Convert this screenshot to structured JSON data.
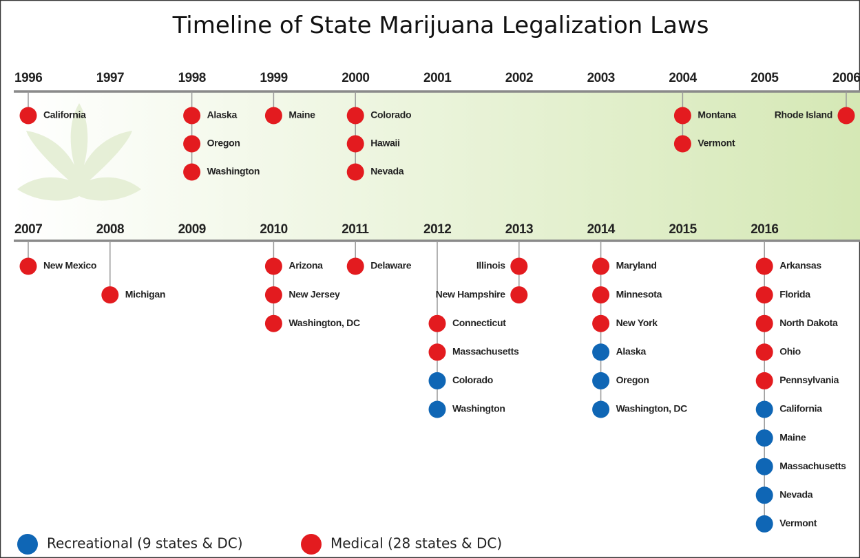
{
  "title": "Timeline of State Marijuana Legalization Laws",
  "rows": [
    {
      "years": [
        {
          "year": "1996",
          "entries": [
            {
              "state": "California",
              "color": "#e31b1f"
            }
          ]
        },
        {
          "year": "1997",
          "entries": []
        },
        {
          "year": "1998",
          "entries": [
            {
              "state": "Alaska",
              "color": "#e31b1f"
            },
            {
              "state": "Oregon",
              "color": "#e31b1f"
            },
            {
              "state": "Washington",
              "color": "#e31b1f"
            }
          ]
        },
        {
          "year": "1999",
          "entries": [
            {
              "state": "Maine",
              "color": "#e31b1f"
            }
          ]
        },
        {
          "year": "2000",
          "entries": [
            {
              "state": "Colorado",
              "color": "#e31b1f"
            },
            {
              "state": "Hawaii",
              "color": "#e31b1f"
            },
            {
              "state": "Nevada",
              "color": "#e31b1f"
            }
          ]
        },
        {
          "year": "2001",
          "entries": []
        },
        {
          "year": "2002",
          "entries": []
        },
        {
          "year": "2003",
          "entries": []
        },
        {
          "year": "2004",
          "entries": [
            {
              "state": "Montana",
              "color": "#e31b1f"
            },
            {
              "state": "Vermont",
              "color": "#e31b1f"
            }
          ]
        },
        {
          "year": "2005",
          "entries": []
        },
        {
          "year": "2006",
          "entries": [
            {
              "state": "Rhode Island",
              "color": "#e31b1f"
            }
          ]
        }
      ]
    },
    {
      "years": [
        {
          "year": "2007",
          "entries": [
            {
              "state": "New Mexico",
              "color": "#e31b1f"
            }
          ]
        },
        {
          "year": "2008",
          "entries": [
            {
              "state": "Michigan",
              "color": "#e31b1f"
            }
          ]
        },
        {
          "year": "2009",
          "entries": []
        },
        {
          "year": "2010",
          "entries": [
            {
              "state": "Arizona",
              "color": "#e31b1f"
            },
            {
              "state": "New Jersey",
              "color": "#e31b1f"
            },
            {
              "state": "Washington, DC",
              "color": "#e31b1f"
            }
          ]
        },
        {
          "year": "2011",
          "entries": [
            {
              "state": "Delaware",
              "color": "#e31b1f"
            }
          ]
        },
        {
          "year": "2012",
          "entries": [
            {
              "state": "Connecticut",
              "color": "#e31b1f"
            },
            {
              "state": "Massachusetts",
              "color": "#e31b1f"
            },
            {
              "state": "Colorado",
              "color": "#0f66b5"
            },
            {
              "state": "Washington",
              "color": "#0f66b5"
            }
          ]
        },
        {
          "year": "2013",
          "entries": [
            {
              "state": "Illinois",
              "color": "#e31b1f"
            },
            {
              "state": "New Hampshire",
              "color": "#e31b1f"
            }
          ]
        },
        {
          "year": "2014",
          "entries": [
            {
              "state": "Maryland",
              "color": "#e31b1f"
            },
            {
              "state": "Minnesota",
              "color": "#e31b1f"
            },
            {
              "state": "New York",
              "color": "#e31b1f"
            },
            {
              "state": "Alaska",
              "color": "#0f66b5"
            },
            {
              "state": "Oregon",
              "color": "#0f66b5"
            },
            {
              "state": "Washington, DC",
              "color": "#0f66b5"
            }
          ]
        },
        {
          "year": "2015",
          "entries": []
        },
        {
          "year": "2016",
          "entries": [
            {
              "state": "Arkansas",
              "color": "#e31b1f"
            },
            {
              "state": "Florida",
              "color": "#e31b1f"
            },
            {
              "state": "North Dakota",
              "color": "#e31b1f"
            },
            {
              "state": "Ohio",
              "color": "#e31b1f"
            },
            {
              "state": "Pennsylvania",
              "color": "#e31b1f"
            },
            {
              "state": "California",
              "color": "#0f66b5"
            },
            {
              "state": "Maine",
              "color": "#0f66b5"
            },
            {
              "state": "Massachusetts",
              "color": "#0f66b5"
            },
            {
              "state": "Nevada",
              "color": "#0f66b5"
            },
            {
              "state": "Vermont",
              "color": "#0f66b5"
            }
          ]
        }
      ]
    }
  ],
  "legend": [
    {
      "label": "Recreational (9 states & DC)",
      "color": "#0f66b5"
    },
    {
      "label": "Medical (28 states & DC)",
      "color": "#e31b1f"
    }
  ]
}
